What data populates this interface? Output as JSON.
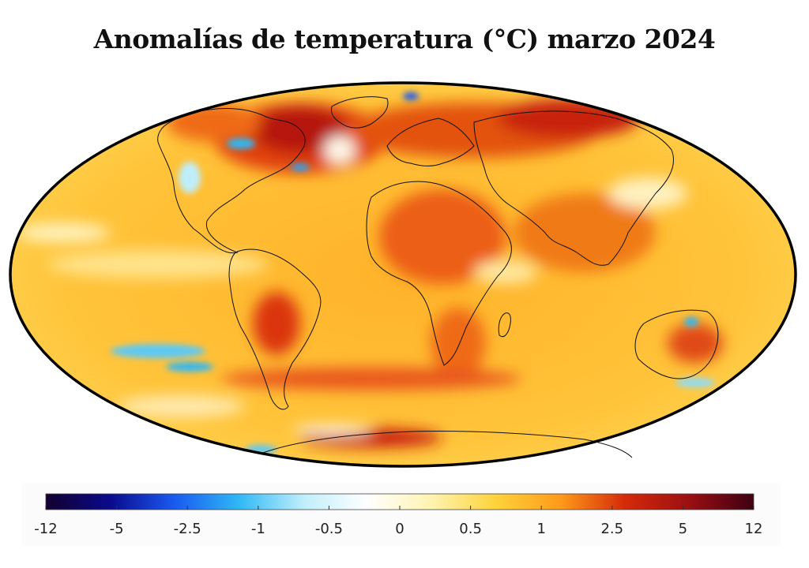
{
  "title": "Anomalías de temperatura (°C) marzo 2024",
  "map": {
    "projection": "mollweide",
    "coastline_color": "#111111",
    "border_color": "#000000"
  },
  "colorbar": {
    "tick_labels": [
      "-12",
      "-5",
      "-2.5",
      "-1",
      "-0.5",
      "0",
      "0.5",
      "1",
      "2.5",
      "5",
      "12"
    ],
    "colors": [
      "#12002e",
      "#0a0a8c",
      "#1a5af0",
      "#2fb8f5",
      "#bfeefb",
      "#ffffff",
      "#fff3b0",
      "#ffd23a",
      "#ff9a1a",
      "#d52a0a",
      "#9a0f12",
      "#3d0012"
    ]
  }
}
